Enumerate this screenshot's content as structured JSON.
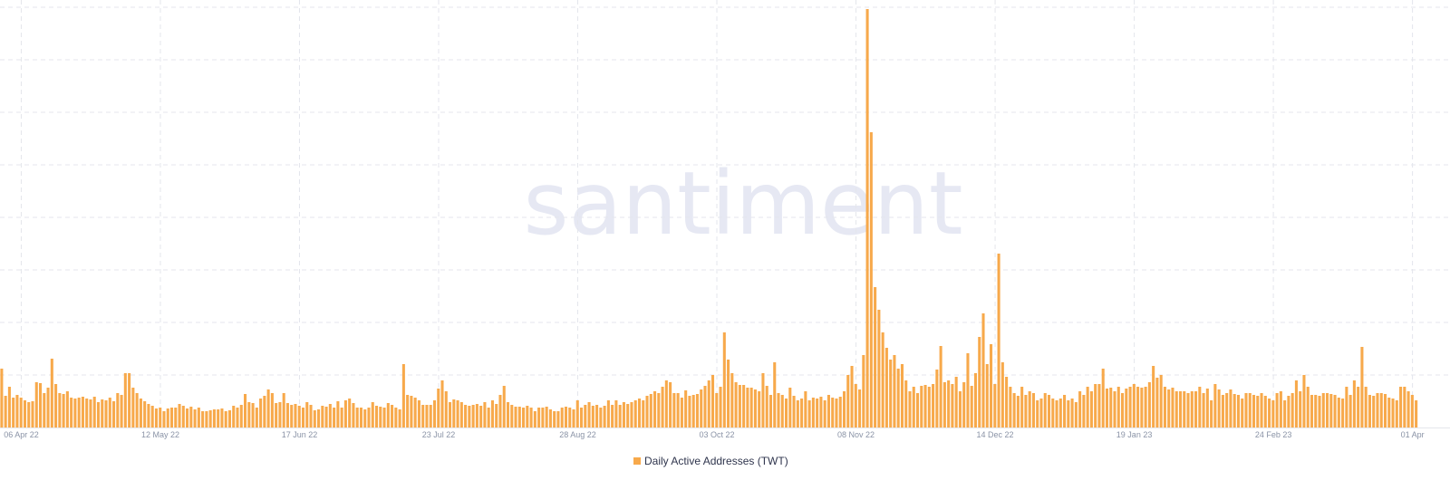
{
  "chart_data": {
    "type": "bar",
    "watermark": "santiment",
    "series": [
      {
        "name": "Daily Active Addresses (TWT)",
        "color": "#f7a94b",
        "values": [
          65,
          35,
          45,
          33,
          36,
          33,
          30,
          28,
          29,
          50,
          49,
          38,
          44,
          76,
          48,
          38,
          37,
          40,
          33,
          32,
          33,
          34,
          32,
          31,
          34,
          28,
          31,
          30,
          33,
          29,
          38,
          36,
          60,
          60,
          44,
          38,
          32,
          29,
          26,
          24,
          21,
          22,
          18,
          21,
          22,
          22,
          26,
          24,
          21,
          23,
          20,
          22,
          18,
          18,
          19,
          20,
          20,
          21,
          18,
          19,
          24,
          22,
          25,
          37,
          28,
          27,
          22,
          32,
          35,
          42,
          38,
          27,
          28,
          38,
          27,
          25,
          26,
          24,
          22,
          28,
          25,
          19,
          20,
          24,
          23,
          26,
          22,
          29,
          22,
          30,
          32,
          27,
          22,
          22,
          20,
          22,
          28,
          24,
          23,
          22,
          27,
          25,
          22,
          20,
          70,
          36,
          35,
          33,
          30,
          25,
          25,
          25,
          30,
          43,
          52,
          40,
          28,
          31,
          30,
          28,
          25,
          24,
          25,
          26,
          24,
          28,
          22,
          30,
          26,
          36,
          46,
          28,
          25,
          23,
          23,
          22,
          24,
          22,
          18,
          22,
          22,
          23,
          20,
          18,
          18,
          22,
          23,
          22,
          20,
          30,
          22,
          25,
          28,
          24,
          25,
          22,
          24,
          30,
          25,
          30,
          25,
          28,
          26,
          28,
          30,
          32,
          30,
          35,
          37,
          40,
          38,
          45,
          52,
          50,
          38,
          38,
          33,
          41,
          35,
          36,
          37,
          42,
          46,
          52,
          58,
          38,
          45,
          105,
          75,
          60,
          50,
          47,
          47,
          44,
          44,
          42,
          40,
          60,
          46,
          36,
          72,
          38,
          36,
          32,
          44,
          35,
          30,
          32,
          40,
          30,
          33,
          32,
          34,
          30,
          36,
          33,
          32,
          34,
          40,
          58,
          68,
          48,
          42,
          80,
          462,
          326,
          155,
          130,
          105,
          88,
          75,
          80,
          65,
          70,
          52,
          40,
          45,
          38,
          46,
          47,
          45,
          48,
          64,
          90,
          50,
          52,
          48,
          56,
          40,
          50,
          82,
          46,
          60,
          100,
          126,
          70,
          92,
          48,
          192,
          72,
          56,
          45,
          38,
          35,
          45,
          36,
          40,
          38,
          30,
          32,
          38,
          36,
          32,
          30,
          32,
          36,
          30,
          32,
          28,
          40,
          36,
          45,
          40,
          48,
          48,
          65,
          43,
          44,
          40,
          45,
          38,
          43,
          45,
          48,
          45,
          44,
          45,
          50,
          68,
          55,
          58,
          45,
          42,
          44,
          40,
          40,
          40,
          38,
          40,
          40,
          45,
          38,
          43,
          30,
          48,
          42,
          36,
          38,
          42,
          37,
          36,
          32,
          38,
          38,
          36,
          35,
          38,
          35,
          32,
          30,
          38,
          40,
          30,
          35,
          38,
          52,
          40,
          58,
          45,
          36,
          36,
          35,
          38,
          38,
          37,
          36,
          33,
          32,
          45,
          36,
          52,
          45,
          89,
          45,
          36,
          35,
          38,
          38,
          37,
          33,
          32,
          30,
          45,
          45,
          40,
          36,
          30
        ]
      }
    ],
    "categories": [
      null,
      null,
      null,
      null,
      null,
      "06 Apr 22",
      null,
      null,
      null,
      null,
      null,
      null,
      null,
      null,
      null,
      null,
      null,
      null,
      null,
      null,
      null,
      null,
      null,
      null,
      null,
      null,
      null,
      null,
      null,
      null,
      null,
      null,
      null,
      null,
      null,
      null,
      null,
      null,
      null,
      null,
      null,
      "12 May 22",
      null,
      null,
      null,
      null,
      null,
      null,
      null,
      null,
      null,
      null,
      null,
      null,
      null,
      null,
      null,
      null,
      null,
      null,
      null,
      null,
      null,
      null,
      null,
      null,
      null,
      null,
      null,
      null,
      null,
      null,
      null,
      null,
      null,
      null,
      null,
      "17 Jun 22",
      null,
      null,
      null,
      null,
      null,
      null,
      null,
      null,
      null,
      null,
      null,
      null,
      null,
      null,
      null,
      null,
      null,
      null,
      null,
      null,
      null,
      null,
      null,
      null,
      null,
      null,
      null,
      null,
      null,
      null,
      null,
      null,
      null,
      null,
      null,
      "23 Jul 22",
      null,
      null,
      null,
      null,
      null,
      null,
      null,
      null,
      null,
      null,
      null,
      null,
      null,
      null,
      null,
      null,
      null,
      null,
      null,
      null,
      null,
      null,
      null,
      null,
      null,
      null,
      null,
      null,
      null,
      null,
      null,
      null,
      null,
      null,
      null,
      "28 Aug 22",
      null,
      null,
      null,
      null,
      null,
      null,
      null,
      null,
      null,
      null,
      null,
      null,
      null,
      null,
      null,
      null,
      null,
      null,
      null,
      null,
      null,
      null,
      null,
      null,
      null,
      null,
      null,
      null,
      null,
      null,
      null,
      null,
      null,
      null,
      null,
      "03 Oct 22",
      null,
      null,
      null,
      null,
      null,
      null,
      null,
      null,
      null,
      null,
      null,
      null,
      null,
      null,
      null,
      null,
      null,
      null,
      null,
      null,
      null,
      null,
      null,
      null,
      null,
      null,
      null,
      null,
      null,
      null,
      null,
      null,
      null,
      null,
      null,
      "08 Nov 22",
      null,
      null,
      null,
      null,
      null,
      null,
      null,
      null,
      null,
      null,
      null,
      null,
      null,
      null,
      null,
      null,
      null,
      null,
      null,
      null,
      null,
      null,
      null,
      null,
      null,
      null,
      null,
      null,
      null,
      null,
      null,
      null,
      null,
      null,
      null,
      "14 Dec 22",
      null,
      null,
      null,
      null,
      null,
      null,
      null,
      null,
      null,
      null,
      null,
      null,
      null,
      null,
      null,
      null,
      null,
      null,
      null,
      null,
      null,
      null,
      null,
      null,
      null,
      null,
      null,
      null,
      null,
      null,
      null,
      null,
      null,
      null,
      null,
      "19 Jan 23",
      null,
      null,
      null,
      null,
      null,
      null,
      null,
      null,
      null,
      null,
      null,
      null,
      null,
      null,
      null,
      null,
      null,
      null,
      null,
      null,
      null,
      null,
      null,
      null,
      null,
      null,
      null,
      null,
      null,
      null,
      null,
      null,
      null,
      null,
      null,
      "24 Feb 23",
      null,
      null,
      null,
      null,
      null,
      null,
      null,
      null,
      null,
      null,
      null,
      null,
      null,
      null,
      null,
      null,
      null,
      null,
      null,
      null,
      null,
      null,
      null,
      null,
      null,
      null,
      null,
      null,
      null,
      null,
      null,
      null,
      null,
      null,
      null,
      "01 Apr",
      null
    ],
    "grid": true,
    "legend": "bottom"
  }
}
